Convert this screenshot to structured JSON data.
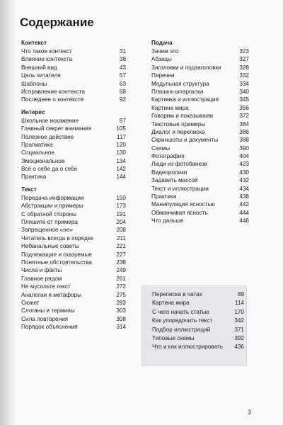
{
  "title": "Содержание",
  "page_number": "3",
  "left_sections": [
    {
      "name": "Контекст",
      "entries": [
        {
          "t": "Что такое контекст",
          "p": "31"
        },
        {
          "t": "Влияние контекста",
          "p": "38"
        },
        {
          "t": "Внешний вид",
          "p": "43"
        },
        {
          "t": "Цель читателя",
          "p": "57"
        },
        {
          "t": "Шаблоны",
          "p": "63"
        },
        {
          "t": "Исправление контекста",
          "p": "68"
        },
        {
          "t": "Последнее о контексте",
          "p": "92"
        }
      ]
    },
    {
      "name": "Интерес",
      "entries": [
        {
          "t": "Школьное искажение",
          "p": "97"
        },
        {
          "t": "Главный секрет внимания",
          "p": "105"
        },
        {
          "t": "Полезное действие",
          "p": "117"
        },
        {
          "t": "Прагматика",
          "p": "120"
        },
        {
          "t": "Социальное",
          "p": "130"
        },
        {
          "t": "Эмоциональное",
          "p": "134"
        },
        {
          "t": "Всё о себе да о себе",
          "p": "142"
        },
        {
          "t": "Практика",
          "p": "144"
        }
      ]
    },
    {
      "name": "Текст",
      "entries": [
        {
          "t": "Передача информации",
          "p": "150"
        },
        {
          "t": "Абстракции и примеры",
          "p": "173"
        },
        {
          "t": "С обратной стороны",
          "p": "191"
        },
        {
          "t": "Пляшите от примера",
          "p": "204"
        },
        {
          "t": "Запрещенное «не»",
          "p": "208"
        },
        {
          "t": "Читатель всегда в порядке",
          "p": "211"
        },
        {
          "t": "Небанальные советы",
          "p": "221"
        },
        {
          "t": "Подлежащие и сказуемые",
          "p": "227"
        },
        {
          "t": "Понятные обстоятельства",
          "p": "238"
        },
        {
          "t": "Числа и факты",
          "p": "249"
        },
        {
          "t": "Главное рядом",
          "p": "261"
        },
        {
          "t": "Не мусольте текст",
          "p": "272"
        },
        {
          "t": "Аналогии и метафоры",
          "p": "275"
        },
        {
          "t": "Сюжет",
          "p": "283"
        },
        {
          "t": "Слоганы и термины",
          "p": "303"
        },
        {
          "t": "Сила повторения",
          "p": "308"
        },
        {
          "t": "Порядок объяснения",
          "p": "314"
        }
      ]
    }
  ],
  "right_sections": [
    {
      "name": "Подача",
      "entries": [
        {
          "t": "Зачем это",
          "p": "323"
        },
        {
          "t": "Абзацы",
          "p": "327"
        },
        {
          "t": "Заголовки и подзаголовки",
          "p": "328"
        },
        {
          "t": "Перечни",
          "p": "332"
        },
        {
          "t": "Модульная структура",
          "p": "334"
        },
        {
          "t": "Плашка-шпаргалка",
          "p": "340"
        },
        {
          "t": "Картинка и иллюстрация",
          "p": "345"
        },
        {
          "t": "Картина мира",
          "p": "356"
        },
        {
          "t": "Говорим и показываем",
          "p": "372"
        },
        {
          "t": "Текстовые примеры",
          "p": "384"
        },
        {
          "t": "Диалог и переписка",
          "p": "386"
        },
        {
          "t": "Скриншоты и документы",
          "p": "388"
        },
        {
          "t": "Схемы",
          "p": "390"
        },
        {
          "t": "Фотография",
          "p": "404"
        },
        {
          "t": "Люди из фотобанков",
          "p": "423"
        },
        {
          "t": "Видеоролики",
          "p": "430"
        },
        {
          "t": "Задавить массой",
          "p": "432"
        },
        {
          "t": "Текст и иллюстрации",
          "p": "434"
        },
        {
          "t": "Практика",
          "p": "438"
        },
        {
          "t": "Манипуляция ясностью",
          "p": "442"
        },
        {
          "t": "Обманчивая ясность",
          "p": "444"
        },
        {
          "t": "Что дальше",
          "p": "446"
        }
      ]
    }
  ],
  "box_entries": [
    {
      "t": "Переписка в чатах",
      "p": "89"
    },
    {
      "t": "Картина мира",
      "p": "114"
    },
    {
      "t": "С чего начать статью",
      "p": "170"
    },
    {
      "t": "Как упорядочить текст",
      "p": "342"
    },
    {
      "t": "Подбор иллюстраций",
      "p": "371"
    },
    {
      "t": "Типовые схемы",
      "p": "392"
    },
    {
      "t": "Что и как иллюстрировать",
      "p": "436"
    }
  ]
}
